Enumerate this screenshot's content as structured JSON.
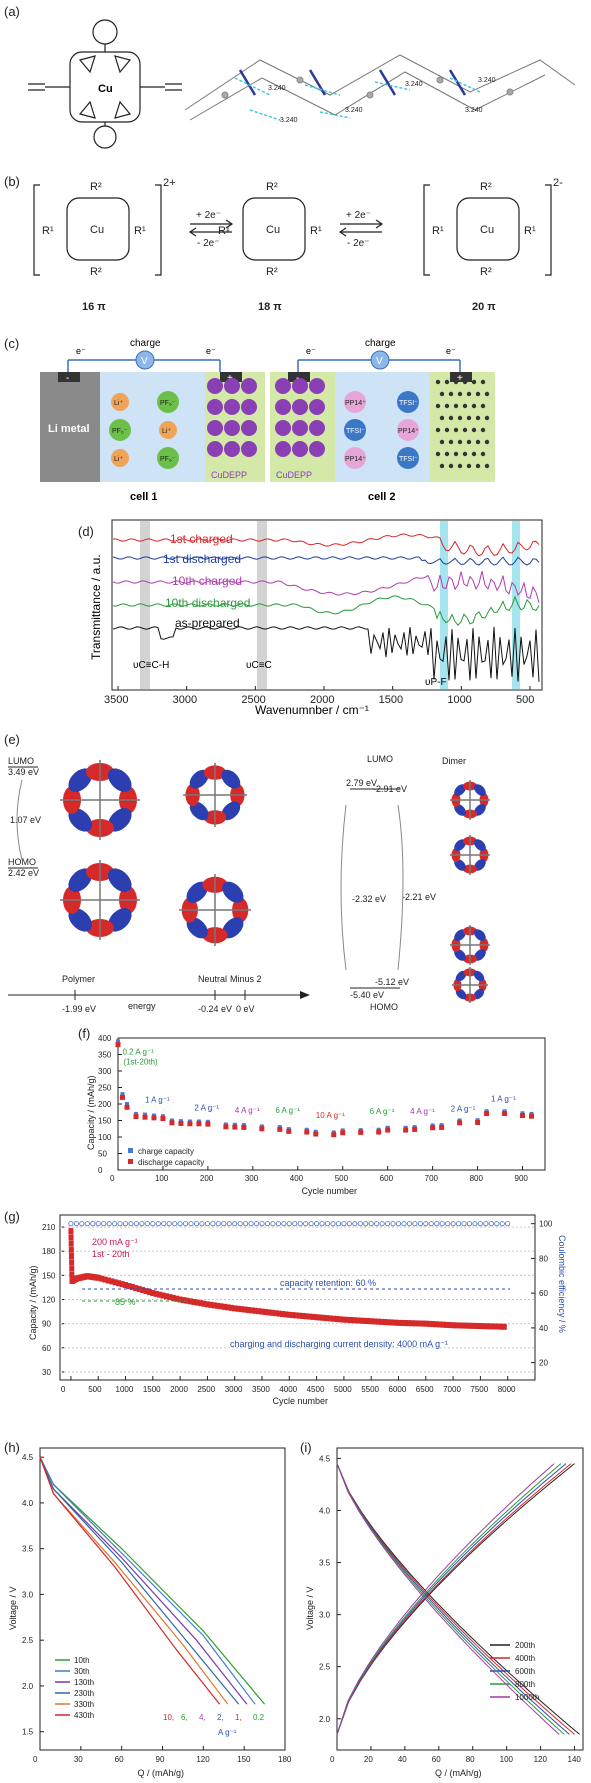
{
  "panels": {
    "a": {
      "label": "(a)",
      "atom_cu": "Cu",
      "distances": [
        "3.240",
        "3.240",
        "3.240",
        "3.240",
        "3.240",
        "3.240"
      ]
    },
    "b": {
      "label": "(b)",
      "species": [
        {
          "charge": "2+",
          "electrons": "16 π"
        },
        {
          "charge": "",
          "electrons": "18 π"
        },
        {
          "charge": "2-",
          "electrons": "20 π"
        }
      ],
      "arrow_top": "+ 2e⁻",
      "arrow_bottom": "- 2e⁻",
      "subst_r1": "R¹",
      "subst_r2": "R²",
      "cu": "Cu"
    },
    "c": {
      "label": "(c)",
      "charge": "charge",
      "electron": "e⁻",
      "voltmeter": "V",
      "minus": "-",
      "plus": "+",
      "cell1": {
        "title": "cell 1",
        "anode": "Li metal",
        "ions": [
          "Li⁺",
          "PF₆⁻",
          "PF₆⁻",
          "Li⁺",
          "Li⁺",
          "PF₆⁻"
        ],
        "cathode": "CuDEPP"
      },
      "cell2": {
        "title": "cell 2",
        "anode": "CuDEPP",
        "ions": [
          "PP14⁺",
          "TFSI⁻",
          "TFSI⁻",
          "PP14⁺",
          "PP14⁺",
          "TFSI⁻"
        ]
      }
    },
    "d": {
      "label": "(d)",
      "ylabel": "Transmittance / a.u.",
      "xlabel": "Wavenumnber / cm⁻¹",
      "xticks": [
        "3500",
        "3000",
        "2500",
        "2000",
        "1500",
        "1000",
        "500"
      ],
      "legend": [
        {
          "name": "1st charged",
          "color": "#d6262b"
        },
        {
          "name": "1st discharged",
          "color": "#1f3fa0"
        },
        {
          "name": "10th charged",
          "color": "#b23cb0"
        },
        {
          "name": "10th discharged",
          "color": "#2a9a3a"
        },
        {
          "name": "as-prepared",
          "color": "#111111"
        }
      ],
      "band1": "υC≡C-H",
      "band2": "υC≡C",
      "band3": "υP-F"
    },
    "e": {
      "label": "(e)",
      "lumo_left": "LUMO",
      "lumo_left_e": "3.49 eV",
      "gap_left": "1.07 eV",
      "homo_left": "HOMO",
      "homo_left_e": "2.42 eV",
      "lumo_right": "LUMO",
      "lumo_r1": "2.79 eV",
      "lumo_r2": "-2.91 eV",
      "gap_r1": "-2.32 eV",
      "gap_r2": "-2.21 eV",
      "homo_right": "HOMO",
      "homo_r1": "-5.12 eV",
      "homo_r2": "-5.40 eV",
      "dimer": "Dimer",
      "axis_polymer": "Polymer",
      "axis_polymer_e": "-1.99 eV",
      "axis_energy": "energy",
      "axis_neutral": "Neutral",
      "axis_neutral_e": "-0.24 eV",
      "axis_minus2": "Minus 2",
      "axis_minus2_e": "0 eV"
    },
    "f": {
      "label": "(f)"
    },
    "g": {
      "label": "(g)"
    },
    "h": {
      "label": "(h)"
    },
    "i": {
      "label": "(i)"
    }
  },
  "chart_data": [
    {
      "id": "f",
      "type": "scatter",
      "xlabel": "Cycle number",
      "ylabel": "Capacity / (mAh/g)",
      "xlim": [
        0,
        950
      ],
      "xticks": [
        0,
        100,
        200,
        300,
        400,
        500,
        600,
        700,
        800,
        900
      ],
      "yticks": [
        0,
        50,
        100,
        150,
        200,
        250,
        300,
        350,
        400
      ],
      "series": [
        {
          "name": "charge capacity",
          "color": "#4a7bd0",
          "x": [
            0,
            10,
            20,
            40,
            60,
            80,
            100,
            120,
            140,
            160,
            180,
            200,
            240,
            260,
            280,
            320,
            360,
            380,
            420,
            440,
            480,
            500,
            540,
            580,
            600,
            640,
            660,
            700,
            720,
            760,
            800,
            820,
            860,
            900,
            920
          ],
          "y": [
            390,
            230,
            200,
            170,
            168,
            165,
            163,
            150,
            148,
            147,
            147,
            146,
            138,
            137,
            136,
            132,
            130,
            124,
            122,
            116,
            114,
            120,
            121,
            122,
            128,
            128,
            130,
            135,
            136,
            150,
            151,
            178,
            178,
            172,
            170
          ]
        },
        {
          "name": "discharge capacity",
          "color": "#d62a2a",
          "x": [
            0,
            10,
            20,
            40,
            60,
            80,
            100,
            120,
            140,
            160,
            180,
            200,
            240,
            260,
            280,
            320,
            360,
            380,
            420,
            440,
            480,
            500,
            540,
            580,
            600,
            640,
            660,
            700,
            720,
            760,
            800,
            820,
            860,
            900,
            920
          ],
          "y": [
            380,
            220,
            190,
            162,
            160,
            158,
            156,
            143,
            141,
            140,
            140,
            139,
            131,
            130,
            129,
            125,
            123,
            117,
            115,
            109,
            107,
            113,
            114,
            115,
            121,
            121,
            123,
            128,
            129,
            143,
            144,
            171,
            171,
            165,
            163
          ]
        }
      ],
      "annotations": [
        "0.2 A g⁻¹",
        "(1st-20th)",
        "1 A g⁻¹",
        "2 A g⁻¹",
        "4 A g⁻¹",
        "6 A g⁻¹",
        "10 A g⁻¹",
        "6 A g⁻¹",
        "4 A g⁻¹",
        "2 A g⁻¹",
        "1 A g⁻¹"
      ]
    },
    {
      "id": "g",
      "type": "scatter",
      "xlabel": "Cycle number",
      "ylabel": "Capacity / (mAh/g)",
      "ylabel2": "Coulombic efficiency / %",
      "xticks": [
        0,
        500,
        1000,
        1500,
        2000,
        2500,
        3000,
        3500,
        4000,
        4500,
        5000,
        5500,
        6000,
        6500,
        7000,
        7500,
        8000
      ],
      "yticks": [
        30,
        60,
        90,
        120,
        150,
        180,
        210
      ],
      "y2ticks": [
        20,
        40,
        60,
        80,
        100
      ],
      "xlim": [
        -200,
        8500
      ],
      "ylim": [
        20,
        225
      ],
      "capacity": {
        "x": [
          0,
          20,
          100,
          300,
          500,
          1000,
          1500,
          2000,
          2500,
          3000,
          3500,
          4000,
          4500,
          5000,
          5500,
          6000,
          6500,
          7000,
          7500,
          8000
        ],
        "y": [
          205,
          143,
          146,
          149,
          147,
          138,
          128,
          120,
          114,
          109,
          105,
          101,
          98,
          95,
          93,
          91,
          90,
          88,
          87,
          86
        ]
      },
      "coulombic": {
        "x": [
          0,
          100,
          8000
        ],
        "y": [
          100,
          100,
          100
        ]
      },
      "annotations": [
        "200 mA g⁻¹",
        "1st - 20th",
        "capacity retention: 60 %",
        "85 %",
        "charging and discharging current density: 4000 mA g⁻¹"
      ]
    },
    {
      "id": "h",
      "type": "line",
      "xlabel": "Q / (mAh/g)",
      "ylabel": "Voltage / V",
      "xticks": [
        0,
        30,
        60,
        90,
        120,
        150,
        180
      ],
      "yticks": [
        1.5,
        2.0,
        2.5,
        3.0,
        3.5,
        4.0,
        4.5
      ],
      "xlim": [
        0,
        180
      ],
      "ylim": [
        1.3,
        4.6
      ],
      "series": [
        {
          "name": "10th",
          "color": "#2aa02a",
          "x": [
            0,
            10,
            60,
            120,
            165
          ],
          "y": [
            4.5,
            4.2,
            3.5,
            2.6,
            1.8
          ]
        },
        {
          "name": "30th",
          "color": "#4b79c6",
          "x": [
            0,
            10,
            60,
            120,
            158
          ],
          "y": [
            4.5,
            4.2,
            3.45,
            2.55,
            1.8
          ]
        },
        {
          "name": "130th",
          "color": "#7a3ba0",
          "x": [
            0,
            10,
            60,
            115,
            152
          ],
          "y": [
            4.5,
            4.15,
            3.4,
            2.5,
            1.8
          ]
        },
        {
          "name": "230th",
          "color": "#2a6aa5",
          "x": [
            0,
            10,
            60,
            110,
            146
          ],
          "y": [
            4.5,
            4.15,
            3.35,
            2.45,
            1.8
          ]
        },
        {
          "name": "330th",
          "color": "#e0762a",
          "x": [
            0,
            10,
            55,
            105,
            138
          ],
          "y": [
            4.5,
            4.1,
            3.35,
            2.45,
            1.8
          ]
        },
        {
          "name": "430th",
          "color": "#d6262b",
          "x": [
            0,
            10,
            55,
            100,
            132
          ],
          "y": [
            4.5,
            4.1,
            3.3,
            2.4,
            1.8
          ]
        }
      ],
      "rate_labels": [
        "10,",
        "6,",
        "4,",
        "2,",
        "1,",
        "0.2"
      ],
      "rate_unit": "A g⁻¹"
    },
    {
      "id": "i",
      "type": "line",
      "xlabel": "Q / (mAh/g)",
      "ylabel": "Voltage / V",
      "xticks": [
        0,
        20,
        40,
        60,
        80,
        100,
        120,
        140
      ],
      "yticks": [
        2.0,
        2.5,
        3.0,
        3.5,
        4.0,
        4.5
      ],
      "xlim": [
        0,
        145
      ],
      "ylim": [
        1.7,
        4.6
      ],
      "series": [
        {
          "name": "200th",
          "color": "#222222"
        },
        {
          "name": "400th",
          "color": "#d6262b"
        },
        {
          "name": "600th",
          "color": "#2a4fb0"
        },
        {
          "name": "800th",
          "color": "#2a9a3a"
        },
        {
          "name": "1000th",
          "color": "#a03aa8"
        }
      ],
      "charge_end": [
        140,
        138,
        135,
        132,
        128
      ],
      "discharge_end": [
        143,
        140,
        137,
        134,
        131
      ]
    }
  ]
}
